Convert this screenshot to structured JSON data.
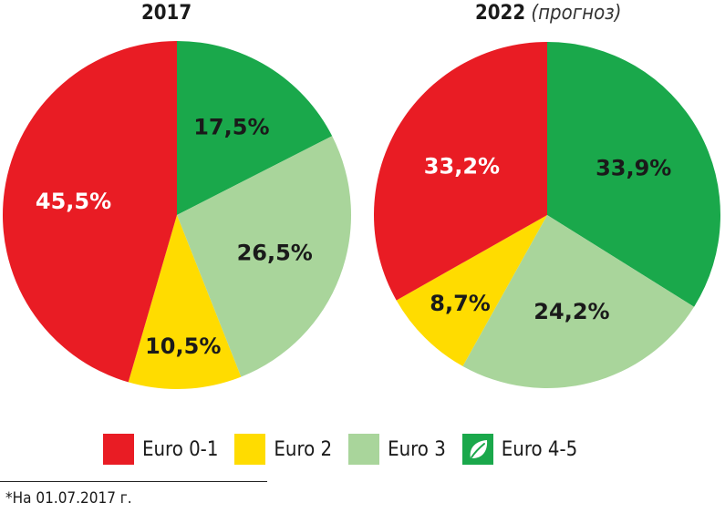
{
  "colors": {
    "euro01": "#e91c24",
    "euro2": "#ffdc00",
    "euro3": "#a9d59b",
    "euro45": "#1aa84b",
    "label_on_dark": "#ffffff",
    "label_on_light": "#1a1a1a"
  },
  "legend": [
    {
      "label": "Euro 0-1",
      "color": "#e91c24",
      "icon": ""
    },
    {
      "label": "Euro 2",
      "color": "#ffdc00",
      "icon": ""
    },
    {
      "label": "Euro 3",
      "color": "#a9d59b",
      "icon": ""
    },
    {
      "label": "Euro 4-5",
      "color": "#1aa84b",
      "icon": "leaf-icon"
    }
  ],
  "footnote": "*На 01.07.2017 г.",
  "chart_data": [
    {
      "type": "pie",
      "title": "2017",
      "subtitle": "",
      "slices": [
        {
          "name": "Euro 4-5",
          "value": 17.5,
          "label": "17,5%"
        },
        {
          "name": "Euro 3",
          "value": 26.5,
          "label": "26,5%"
        },
        {
          "name": "Euro 2",
          "value": 10.5,
          "label": "10,5%"
        },
        {
          "name": "Euro 0-1",
          "value": 45.5,
          "label": "45,5%"
        }
      ]
    },
    {
      "type": "pie",
      "title": "2022",
      "subtitle": "(прогноз)",
      "slices": [
        {
          "name": "Euro 4-5",
          "value": 33.9,
          "label": "33,9%"
        },
        {
          "name": "Euro 3",
          "value": 24.2,
          "label": "24,2%"
        },
        {
          "name": "Euro 2",
          "value": 8.7,
          "label": "8,7%"
        },
        {
          "name": "Euro 0-1",
          "value": 33.2,
          "label": "33,2%"
        }
      ]
    }
  ]
}
